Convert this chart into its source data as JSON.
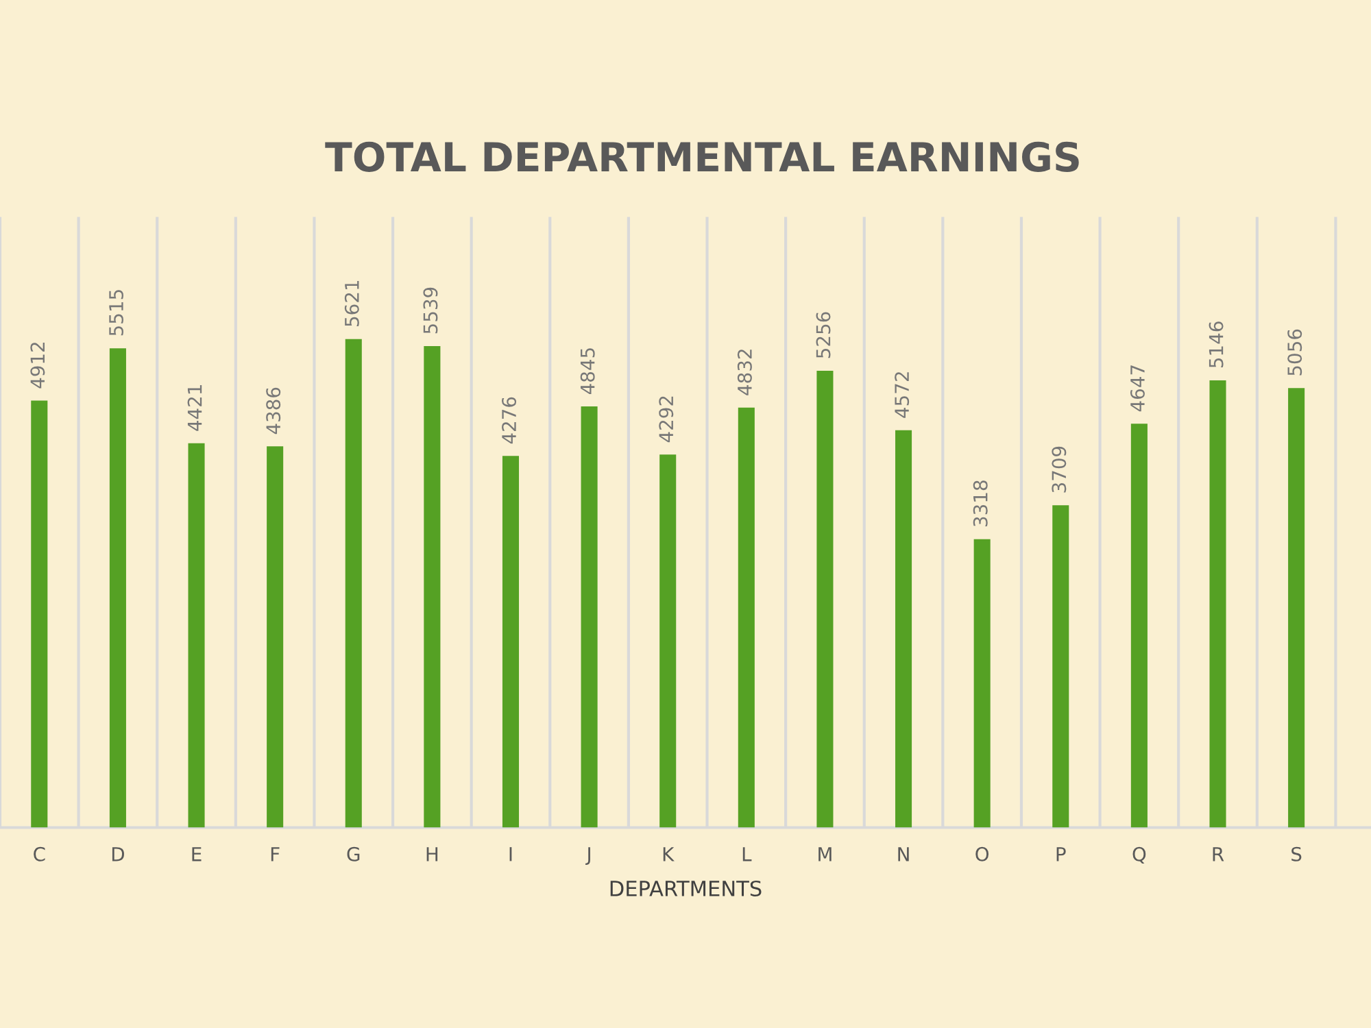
{
  "chart_data": {
    "type": "bar",
    "title": "TOTAL DEPARTMENTAL EARNINGS",
    "xlabel": "DEPARTMENTS",
    "categories": [
      "C",
      "D",
      "E",
      "F",
      "G",
      "H",
      "I",
      "J",
      "K",
      "L",
      "M",
      "N",
      "O",
      "P",
      "Q",
      "R",
      "S"
    ],
    "values": [
      4912,
      5515,
      4421,
      4386,
      5621,
      5539,
      4276,
      4845,
      4292,
      4832,
      5256,
      4572,
      3318,
      3709,
      4647,
      5146,
      5056
    ],
    "color": "#55a124",
    "data_labels": true,
    "grid": "x",
    "legend": false
  }
}
